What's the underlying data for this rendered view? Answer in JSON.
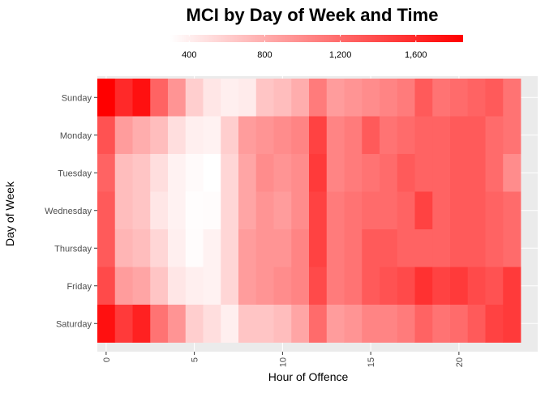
{
  "chart_data": {
    "type": "heatmap",
    "title": "MCI by Day of Week and Time",
    "xlabel": "Hour of Offence",
    "ylabel": "Day of Week",
    "x_ticks": [
      0,
      5,
      10,
      15,
      20
    ],
    "x_values": [
      0,
      1,
      2,
      3,
      4,
      5,
      6,
      7,
      8,
      9,
      10,
      11,
      12,
      13,
      14,
      15,
      16,
      17,
      18,
      19,
      20,
      21,
      22,
      23
    ],
    "y_categories": [
      "Sunday",
      "Monday",
      "Tuesday",
      "Wednesday",
      "Thursday",
      "Friday",
      "Saturday"
    ],
    "color_low": "#ffffff",
    "color_high": "#ff0000",
    "color_range": [
      300,
      1850
    ],
    "legend": {
      "position": "top",
      "ticks": [
        400,
        800,
        1200,
        1600
      ],
      "tick_labels": [
        "400",
        "800",
        "1,200",
        "1,600"
      ]
    },
    "grid": true,
    "values": [
      [
        1850,
        1600,
        1750,
        1250,
        950,
        600,
        450,
        400,
        420,
        650,
        700,
        800,
        1100,
        900,
        950,
        1000,
        1050,
        1100,
        1300,
        1150,
        1200,
        1250,
        1300,
        1150
      ],
      [
        1350,
        900,
        800,
        700,
        500,
        400,
        380,
        600,
        900,
        950,
        1000,
        1050,
        1450,
        1050,
        1100,
        1300,
        1150,
        1200,
        1250,
        1250,
        1300,
        1300,
        1200,
        1150
      ],
      [
        1250,
        700,
        650,
        500,
        380,
        330,
        300,
        550,
        850,
        1000,
        950,
        1000,
        1500,
        1050,
        1100,
        1150,
        1200,
        1300,
        1250,
        1250,
        1300,
        1300,
        1200,
        1000
      ],
      [
        1300,
        700,
        650,
        450,
        380,
        310,
        320,
        550,
        850,
        950,
        900,
        1000,
        1450,
        1100,
        1150,
        1200,
        1200,
        1250,
        1450,
        1250,
        1300,
        1300,
        1250,
        1200
      ],
      [
        1300,
        750,
        700,
        550,
        400,
        320,
        380,
        550,
        900,
        950,
        950,
        1050,
        1450,
        1100,
        1150,
        1300,
        1300,
        1250,
        1250,
        1250,
        1300,
        1300,
        1250,
        1200
      ],
      [
        1400,
        900,
        850,
        650,
        450,
        400,
        380,
        550,
        900,
        950,
        1000,
        1050,
        1400,
        1100,
        1150,
        1300,
        1350,
        1400,
        1550,
        1450,
        1500,
        1400,
        1350,
        1500
      ],
      [
        1750,
        1500,
        1650,
        1150,
        950,
        600,
        500,
        400,
        650,
        650,
        700,
        850,
        1200,
        900,
        950,
        1050,
        1050,
        1100,
        1250,
        1150,
        1200,
        1300,
        1450,
        1500
      ]
    ]
  }
}
